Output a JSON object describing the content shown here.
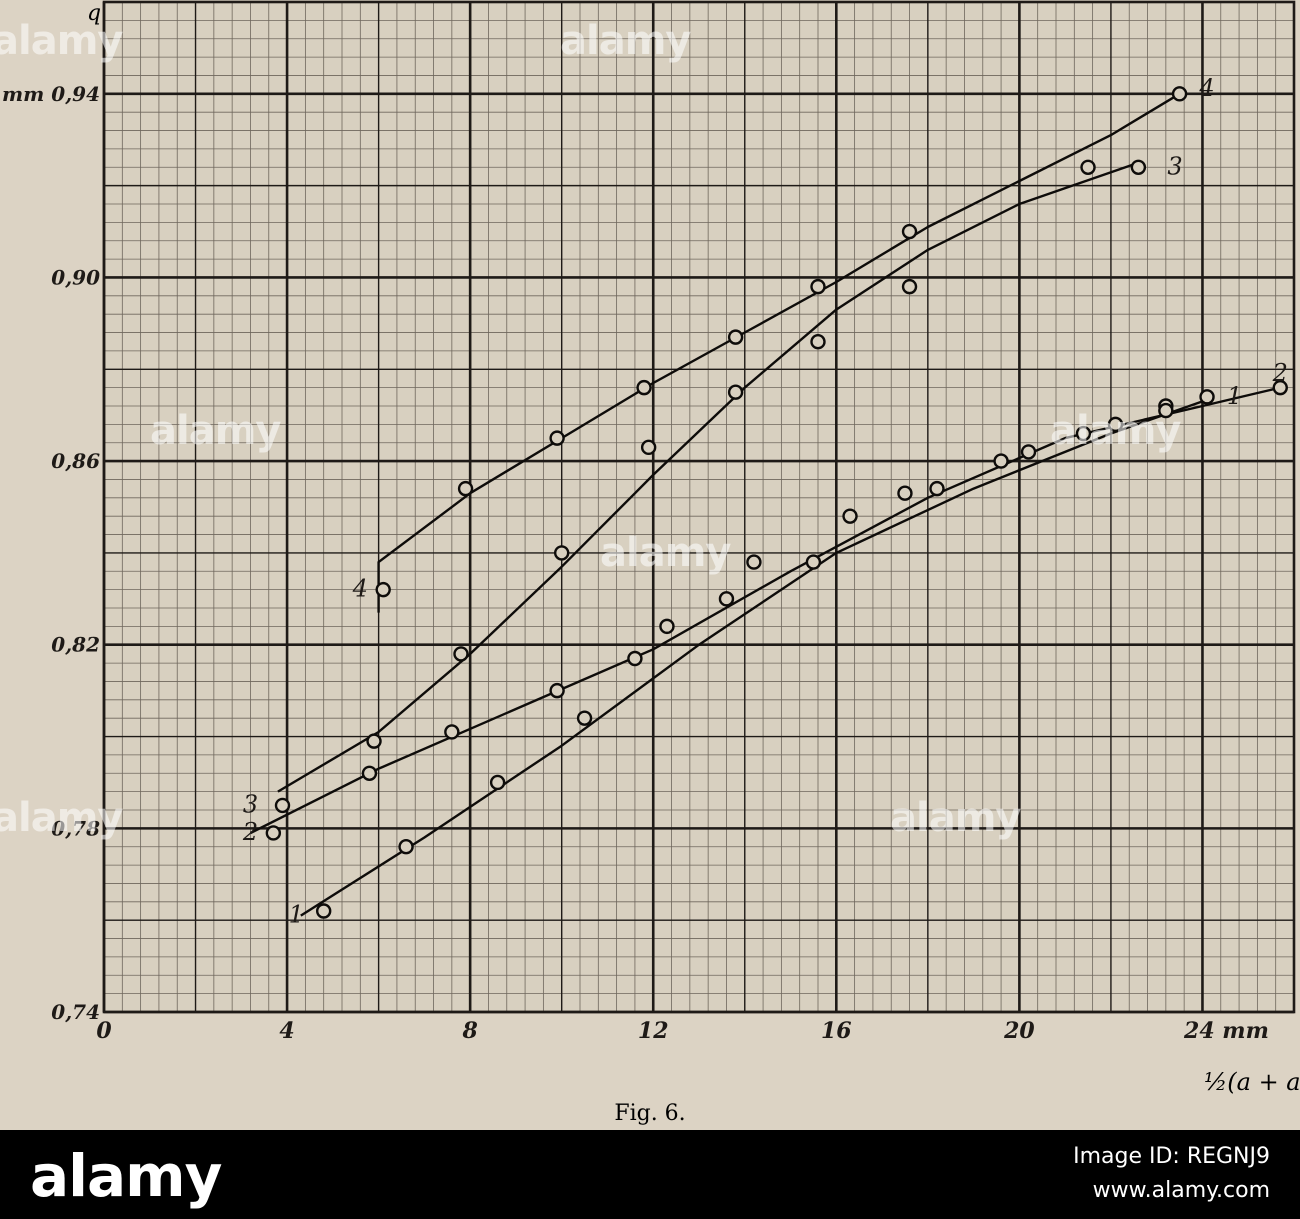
{
  "chart_data": {
    "type": "line",
    "caption": "Fig. 6.",
    "ylabel_symbol": "q",
    "ylabel_unit": "mm",
    "xlabel": "½(a + a′)",
    "xunit": "mm",
    "xlim": [
      0,
      26
    ],
    "ylim": [
      0.74,
      0.96
    ],
    "x_ticks": [
      0,
      4,
      8,
      12,
      16,
      20,
      24
    ],
    "x_tick_labels": [
      "0",
      "4",
      "8",
      "12",
      "16",
      "20",
      "24 mm"
    ],
    "y_ticks": [
      0.74,
      0.78,
      0.82,
      0.86,
      0.9,
      0.94
    ],
    "y_tick_labels": [
      "0,74",
      "0,78",
      "0,82",
      "0,86",
      "0,90",
      "mm 0,94"
    ],
    "grid": true,
    "series": [
      {
        "name": "1",
        "points": [
          [
            4.8,
            0.762
          ],
          [
            6.6,
            0.776
          ],
          [
            8.6,
            0.79
          ],
          [
            10.5,
            0.804
          ],
          [
            12.3,
            0.824
          ],
          [
            14.2,
            0.838
          ],
          [
            16.3,
            0.848
          ],
          [
            17.5,
            0.853
          ],
          [
            19.6,
            0.86
          ],
          [
            21.4,
            0.866
          ],
          [
            23.2,
            0.872
          ],
          [
            24.1,
            0.874
          ]
        ],
        "line": [
          [
            4.3,
            0.761
          ],
          [
            7.0,
            0.778
          ],
          [
            10.0,
            0.798
          ],
          [
            13.0,
            0.82
          ],
          [
            16.0,
            0.84
          ],
          [
            19.0,
            0.854
          ],
          [
            22.0,
            0.866
          ],
          [
            24.0,
            0.873
          ]
        ]
      },
      {
        "name": "2",
        "points": [
          [
            3.7,
            0.779
          ],
          [
            5.8,
            0.792
          ],
          [
            7.6,
            0.801
          ],
          [
            9.9,
            0.81
          ],
          [
            11.6,
            0.817
          ],
          [
            13.6,
            0.83
          ],
          [
            15.5,
            0.838
          ],
          [
            18.2,
            0.854
          ],
          [
            20.2,
            0.862
          ],
          [
            22.1,
            0.868
          ],
          [
            23.2,
            0.871
          ],
          [
            25.7,
            0.876
          ]
        ],
        "line": [
          [
            3.2,
            0.779
          ],
          [
            6.0,
            0.793
          ],
          [
            9.0,
            0.806
          ],
          [
            12.0,
            0.819
          ],
          [
            15.0,
            0.836
          ],
          [
            18.0,
            0.852
          ],
          [
            21.0,
            0.865
          ],
          [
            24.0,
            0.872
          ],
          [
            25.7,
            0.876
          ]
        ]
      },
      {
        "name": "3",
        "points": [
          [
            3.9,
            0.785
          ],
          [
            5.9,
            0.799
          ],
          [
            7.8,
            0.818
          ],
          [
            10.0,
            0.84
          ],
          [
            11.9,
            0.863
          ],
          [
            13.8,
            0.875
          ],
          [
            15.6,
            0.886
          ],
          [
            17.6,
            0.898
          ],
          [
            22.6,
            0.924
          ]
        ],
        "line": [
          [
            3.8,
            0.788
          ],
          [
            6.0,
            0.801
          ],
          [
            8.0,
            0.818
          ],
          [
            10.0,
            0.837
          ],
          [
            12.0,
            0.857
          ],
          [
            14.0,
            0.876
          ],
          [
            16.0,
            0.893
          ],
          [
            18.0,
            0.906
          ],
          [
            20.0,
            0.916
          ],
          [
            22.6,
            0.925
          ]
        ]
      },
      {
        "name": "4",
        "points": [
          [
            6.1,
            0.832
          ],
          [
            7.9,
            0.854
          ],
          [
            9.9,
            0.865
          ],
          [
            11.8,
            0.876
          ],
          [
            13.8,
            0.887
          ],
          [
            15.6,
            0.898
          ],
          [
            17.6,
            0.91
          ],
          [
            21.5,
            0.924
          ],
          [
            23.5,
            0.94
          ]
        ],
        "line": [
          [
            6.0,
            0.827
          ],
          [
            6.0,
            0.838
          ],
          [
            8.0,
            0.853
          ],
          [
            10.0,
            0.865
          ],
          [
            12.0,
            0.877
          ],
          [
            14.0,
            0.888
          ],
          [
            16.0,
            0.899
          ],
          [
            18.0,
            0.911
          ],
          [
            20.0,
            0.921
          ],
          [
            22.0,
            0.931
          ],
          [
            23.5,
            0.94
          ]
        ]
      }
    ],
    "curve_labels": [
      {
        "text": "4",
        "x": 24.1,
        "y": 0.941
      },
      {
        "text": "3",
        "x": 23.4,
        "y": 0.924
      },
      {
        "text": "2",
        "x": 25.7,
        "y": 0.879
      },
      {
        "text": "1",
        "x": 24.7,
        "y": 0.874
      },
      {
        "text": "4",
        "x": 5.6,
        "y": 0.832
      },
      {
        "text": "3",
        "x": 3.2,
        "y": 0.785
      },
      {
        "text": "2",
        "x": 3.2,
        "y": 0.779
      },
      {
        "text": "1",
        "x": 4.2,
        "y": 0.761
      }
    ]
  },
  "watermark": {
    "brand": "alamy",
    "image_id": "Image ID: REGNJ9",
    "site": "www.alamy.com"
  }
}
